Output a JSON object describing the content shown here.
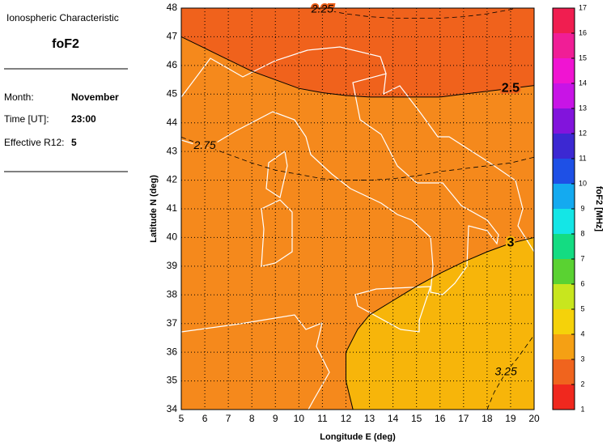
{
  "panel": {
    "heading": "Ionospheric Characteristic",
    "characteristic": "foF2",
    "rows": [
      {
        "label": "Month:",
        "value": "November"
      },
      {
        "label": "Time [UT]:",
        "value": "23:00"
      },
      {
        "label": "Effective R12:",
        "value": "5"
      }
    ]
  },
  "chart_data": {
    "type": "contour",
    "x_label": "Longitude E (deg)",
    "y_label": "Latitude N (deg)",
    "xlim": [
      5,
      20
    ],
    "ylim": [
      34,
      48
    ],
    "xticks": [
      5,
      6,
      7,
      8,
      9,
      10,
      11,
      12,
      13,
      14,
      15,
      16,
      17,
      18,
      19,
      20
    ],
    "yticks": [
      34,
      35,
      36,
      37,
      38,
      39,
      40,
      41,
      42,
      43,
      44,
      45,
      46,
      47,
      48
    ],
    "grid": true,
    "fill_colors": [
      "#f0621c",
      "#f5891c",
      "#f7b50a"
    ],
    "contours": [
      {
        "level": 2.25,
        "style": "dashed",
        "x": [
          10.7,
          11,
          12,
          13,
          14,
          15,
          16,
          17,
          18,
          19,
          19.2
        ],
        "y": [
          48,
          47.95,
          47.8,
          47.7,
          47.65,
          47.65,
          47.65,
          47.7,
          47.8,
          47.95,
          48
        ]
      },
      {
        "level": 2.5,
        "style": "solid",
        "x": [
          5,
          6,
          7,
          8,
          9,
          10,
          11,
          12,
          13,
          14,
          15,
          16,
          17,
          18,
          19,
          20
        ],
        "y": [
          47,
          46.6,
          46.2,
          45.8,
          45.5,
          45.2,
          45.05,
          44.95,
          44.9,
          44.9,
          44.9,
          44.9,
          45,
          45.1,
          45.2,
          45.3
        ]
      },
      {
        "level": 2.75,
        "style": "dashed",
        "x": [
          5,
          6,
          7,
          8,
          9,
          10,
          11,
          12,
          13,
          14,
          15,
          16,
          17,
          18,
          19,
          20
        ],
        "y": [
          43.5,
          43.2,
          42.9,
          42.6,
          42.35,
          42.2,
          42.05,
          42,
          42,
          42.05,
          42.15,
          42.3,
          42.4,
          42.5,
          42.6,
          42.8
        ]
      },
      {
        "level": 3,
        "style": "solid",
        "x": [
          12.3,
          12,
          12,
          12.5,
          13,
          14,
          15,
          16,
          17,
          18,
          19,
          20
        ],
        "y": [
          34,
          35,
          36,
          36.8,
          37.3,
          37.8,
          38.3,
          38.75,
          39.15,
          39.5,
          39.8,
          40
        ]
      },
      {
        "level": 3.25,
        "style": "dashed",
        "x": [
          18,
          18.3,
          18.8,
          19.3,
          20
        ],
        "y": [
          34,
          34.6,
          35.3,
          35.8,
          36.6
        ]
      }
    ],
    "colorbar": {
      "label": "foF2 [MHz]",
      "lim": [
        1,
        17
      ],
      "ticks": [
        1,
        2,
        3,
        4,
        5,
        6,
        7,
        8,
        9,
        10,
        11,
        12,
        13,
        14,
        15,
        16,
        17
      ],
      "colors": [
        "#f0281e",
        "#f0641e",
        "#f5a014",
        "#f5d20a",
        "#c8e61e",
        "#5ad232",
        "#14dc82",
        "#14e6e6",
        "#14aaf0",
        "#1e50e6",
        "#3c28d2",
        "#8214dc",
        "#c814e6",
        "#f014d2",
        "#f01e96",
        "#f01e50"
      ]
    }
  }
}
